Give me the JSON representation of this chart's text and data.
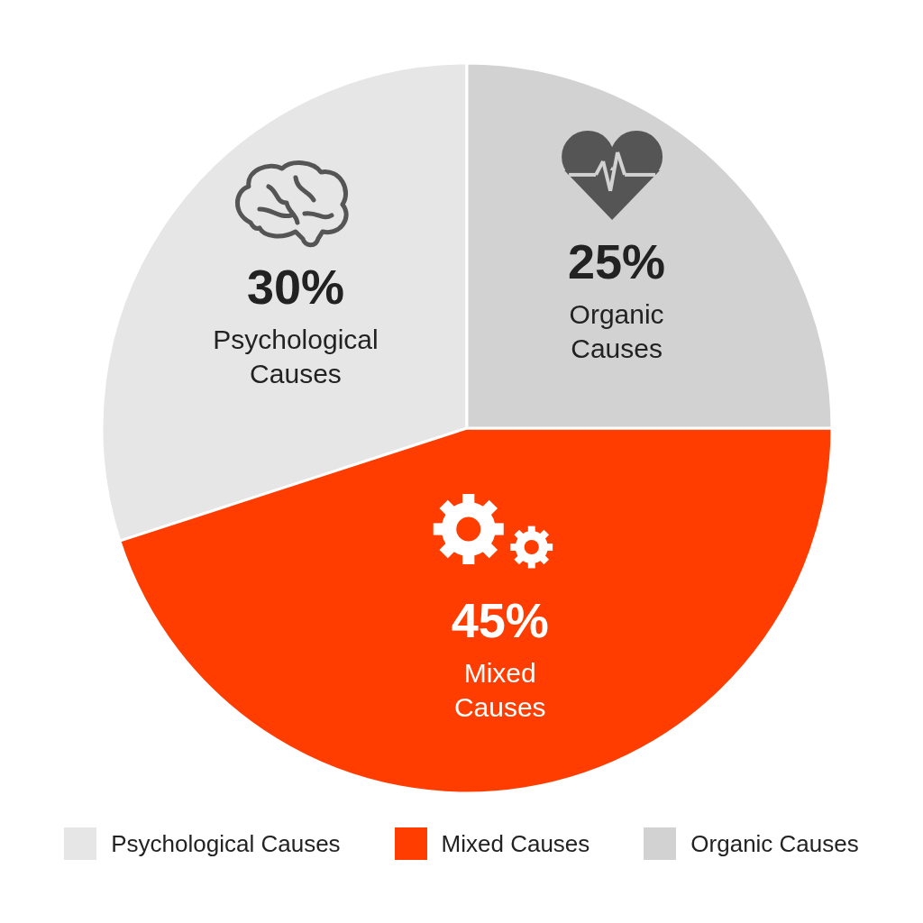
{
  "chart_data": {
    "type": "pie",
    "categories": [
      "Psychological Causes",
      "Mixed Causes",
      "Organic Causes"
    ],
    "values": [
      30,
      45,
      25
    ],
    "value_labels": [
      "30%",
      "45%",
      "25%"
    ],
    "colors": [
      "#e6e6e6",
      "#ff3d00",
      "#d2d2d2"
    ],
    "legend": "bottom"
  }
}
